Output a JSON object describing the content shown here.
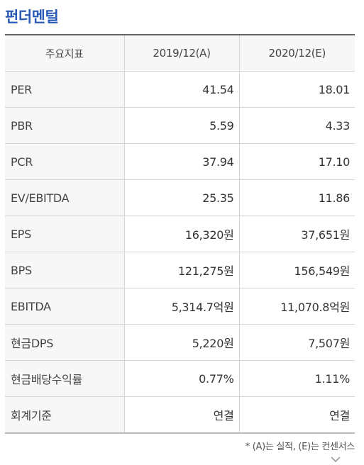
{
  "section": {
    "title": "펀더멘털"
  },
  "table": {
    "headers": [
      "주요지표",
      "2019/12(A)",
      "2020/12(E)"
    ],
    "rows": [
      [
        "PER",
        "41.54",
        "18.01"
      ],
      [
        "PBR",
        "5.59",
        "4.33"
      ],
      [
        "PCR",
        "37.94",
        "17.10"
      ],
      [
        "EV/EBITDA",
        "25.35",
        "11.86"
      ],
      [
        "EPS",
        "16,320원",
        "37,651원"
      ],
      [
        "BPS",
        "121,275원",
        "156,549원"
      ],
      [
        "EBITDA",
        "5,314.7억원",
        "11,070.8억원"
      ],
      [
        "현금DPS",
        "5,220원",
        "7,507원"
      ],
      [
        "현금배당수익률",
        "0.77%",
        "1.11%"
      ],
      [
        "회계기준",
        "연결",
        "연결"
      ]
    ]
  },
  "footnote": "* (A)는 실적, (E)는 컨센서스",
  "icons": {
    "expand": "chevron-down-icon"
  }
}
